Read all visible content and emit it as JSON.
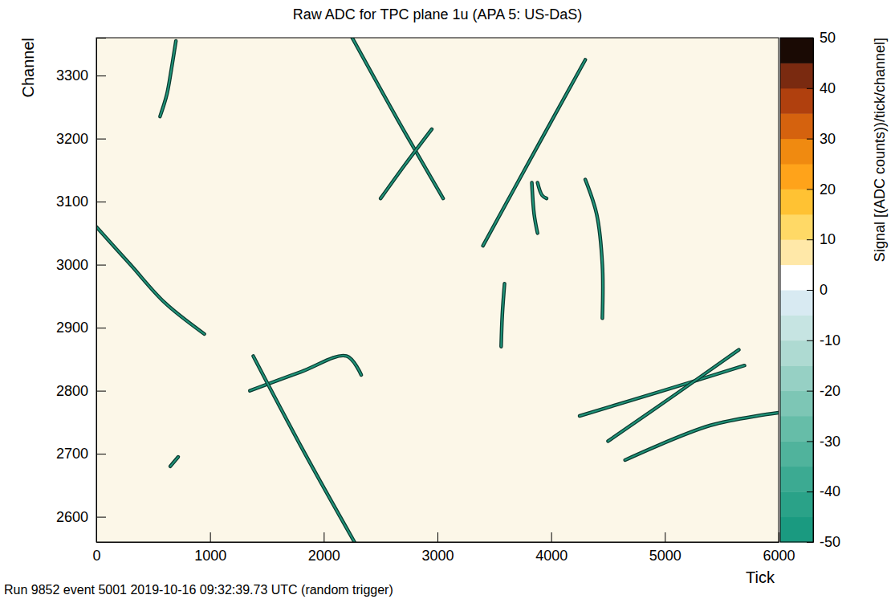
{
  "chart_data": {
    "type": "line",
    "title": "Raw ADC for TPC plane 1u (APA 5: US-DaS)",
    "x_label": "Tick",
    "y_label": "Channel",
    "footer": "Run 9852 event 5001 2019-10-16 09:32:39.73 UTC (random trigger)",
    "xlim": [
      0,
      6000
    ],
    "xticks": [
      0,
      1000,
      2000,
      3000,
      4000,
      5000,
      6000
    ],
    "ylim": [
      2560,
      3360
    ],
    "yticks": [
      2600,
      2700,
      2800,
      2900,
      3000,
      3100,
      3200,
      3300
    ],
    "color": "#1f9479",
    "grid": false,
    "series": [
      {
        "x": [
          560,
          620,
          660,
          700
        ],
        "values": [
          3235,
          3270,
          3310,
          3355
        ]
      },
      {
        "x": [
          2250,
          2650,
          3050
        ],
        "values": [
          3360,
          3230,
          3105
        ]
      },
      {
        "x": [
          2500,
          2720,
          2950
        ],
        "values": [
          3105,
          3160,
          3215
        ]
      },
      {
        "x": [
          3400,
          3850,
          4300
        ],
        "values": [
          3030,
          3178,
          3325
        ]
      },
      {
        "x": [
          3830,
          3850,
          3880
        ],
        "values": [
          3130,
          3080,
          3050
        ]
      },
      {
        "x": [
          3880,
          3920,
          3960
        ],
        "values": [
          3130,
          3110,
          3105
        ]
      },
      {
        "x": [
          4300,
          4400,
          4450,
          4450
        ],
        "values": [
          3135,
          3080,
          3000,
          2915
        ]
      },
      {
        "x": [
          3590,
          3570,
          3560
        ],
        "values": [
          2970,
          2920,
          2870
        ]
      },
      {
        "x": [
          0,
          300,
          600,
          950
        ],
        "values": [
          3060,
          3000,
          2940,
          2890
        ]
      },
      {
        "x": [
          1350,
          1800,
          2200,
          2330
        ],
        "values": [
          2800,
          2830,
          2855,
          2825
        ]
      },
      {
        "x": [
          1380,
          1820,
          2270
        ],
        "values": [
          2855,
          2705,
          2560
        ]
      },
      {
        "x": [
          4250,
          5000,
          5700
        ],
        "values": [
          2760,
          2801,
          2840
        ]
      },
      {
        "x": [
          4500,
          5100,
          5650
        ],
        "values": [
          2720,
          2795,
          2865
        ]
      },
      {
        "x": [
          4650,
          5400,
          6000
        ],
        "values": [
          2690,
          2745,
          2765
        ]
      },
      {
        "x": [
          650,
          720
        ],
        "values": [
          2680,
          2695
        ]
      }
    ],
    "colorbar": {
      "label": "Signal [(ADC counts))/tick/channel]",
      "range": [
        -50,
        50
      ],
      "ticks": [
        -50,
        -40,
        -30,
        -20,
        -10,
        0,
        10,
        20,
        30,
        40,
        50
      ],
      "colors": [
        "#1a9a80",
        "#2aa288",
        "#3caa92",
        "#50b39c",
        "#66bda8",
        "#7dc6b5",
        "#96d0c4",
        "#aedad2",
        "#c6e4e2",
        "#d8eaf2",
        "#ffffff",
        "#ffe8a8",
        "#ffd966",
        "#ffc233",
        "#ffa31a",
        "#f08a10",
        "#d5620e",
        "#b0400e",
        "#7a2a10",
        "#1a0a04"
      ]
    }
  }
}
